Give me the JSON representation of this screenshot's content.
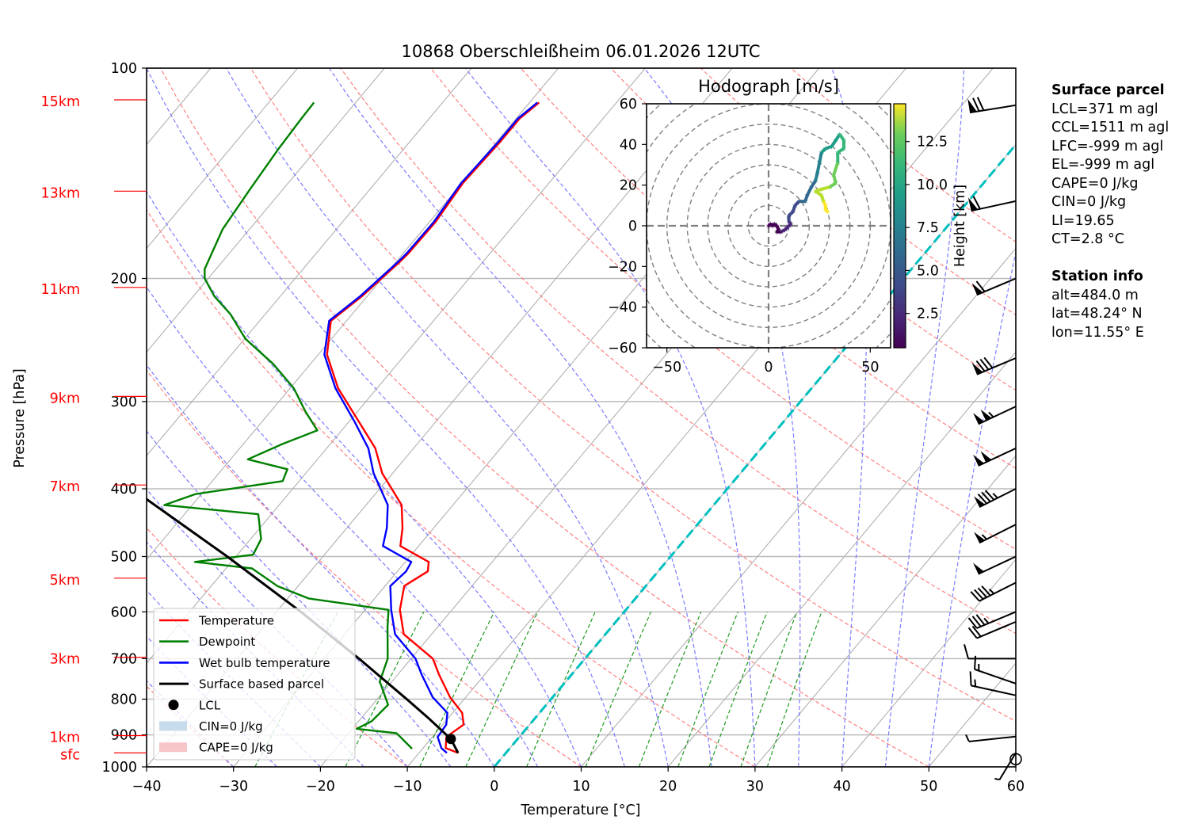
{
  "chart_data": {
    "type": "line",
    "subtype": "skew-T log-P diagram",
    "title": "10868 Oberschleißheim 06.01.2026 12UTC",
    "xlabel": "Temperature [°C]",
    "ylabel": "Pressure [hPa]",
    "xlim": [
      -40,
      60
    ],
    "ylim": [
      1000,
      100
    ],
    "y_scale": "log",
    "grid": true,
    "x_ticks": [
      -40,
      -30,
      -20,
      -10,
      0,
      10,
      20,
      30,
      40,
      50,
      60
    ],
    "x_tick_labels": [
      "−40",
      "−30",
      "−20",
      "−10",
      "0",
      "10",
      "20",
      "30",
      "40",
      "50",
      "60"
    ],
    "y_ticks": [
      100,
      200,
      300,
      400,
      500,
      600,
      700,
      800,
      900,
      1000
    ],
    "y_tick_labels": [
      "100",
      "200",
      "300",
      "400",
      "500",
      "600",
      "700",
      "800",
      "900",
      "1000"
    ],
    "height_markers": [
      {
        "label": "15km",
        "p": 111
      },
      {
        "label": "13km",
        "p": 150
      },
      {
        "label": "11km",
        "p": 206
      },
      {
        "label": "9km",
        "p": 295
      },
      {
        "label": "7km",
        "p": 395
      },
      {
        "label": "5km",
        "p": 537
      },
      {
        "label": "3km",
        "p": 697
      },
      {
        "label": "1km",
        "p": 902
      },
      {
        "label": "sfc",
        "p": 955
      }
    ],
    "series": [
      {
        "name": "Temperature",
        "color": "#ff0000",
        "points": [
          [
            955,
            -5.5
          ],
          [
            940,
            -7.4
          ],
          [
            906,
            -8.4
          ],
          [
            870,
            -7.6
          ],
          [
            837,
            -8.9
          ],
          [
            795,
            -11.8
          ],
          [
            737,
            -15.3
          ],
          [
            700,
            -17.5
          ],
          [
            646,
            -23.2
          ],
          [
            596,
            -26.0
          ],
          [
            551,
            -27.8
          ],
          [
            525,
            -26.5
          ],
          [
            509,
            -27.3
          ],
          [
            483,
            -32.1
          ],
          [
            455,
            -33.6
          ],
          [
            422,
            -35.9
          ],
          [
            380,
            -41.2
          ],
          [
            350,
            -44.4
          ],
          [
            321,
            -48.8
          ],
          [
            287,
            -54.5
          ],
          [
            257,
            -59.0
          ],
          [
            230,
            -61.8
          ],
          [
            212,
            -60.6
          ],
          [
            190,
            -59.6
          ],
          [
            184,
            -59.4
          ],
          [
            166,
            -59.3
          ],
          [
            146,
            -59.9
          ],
          [
            128,
            -59.6
          ],
          [
            118,
            -59.6
          ],
          [
            112,
            -58.9
          ]
        ]
      },
      {
        "name": "Dewpoint",
        "color": "#008000",
        "points": [
          [
            942,
            -11.2
          ],
          [
            906,
            -13.7
          ],
          [
            895,
            -14.5
          ],
          [
            882,
            -19.5
          ],
          [
            860,
            -18.5
          ],
          [
            815,
            -18.2
          ],
          [
            755,
            -21.4
          ],
          [
            700,
            -22.7
          ],
          [
            630,
            -25.8
          ],
          [
            596,
            -27.3
          ],
          [
            574,
            -37.6
          ],
          [
            551,
            -42.4
          ],
          [
            520,
            -47.0
          ],
          [
            509,
            -54.2
          ],
          [
            497,
            -48.2
          ],
          [
            472,
            -48.8
          ],
          [
            435,
            -51.5
          ],
          [
            422,
            -63.2
          ],
          [
            407,
            -60.7
          ],
          [
            390,
            -51.9
          ],
          [
            375,
            -52.5
          ],
          [
            363,
            -58.0
          ],
          [
            345,
            -55.5
          ],
          [
            330,
            -52.8
          ],
          [
            310,
            -56.0
          ],
          [
            287,
            -59.6
          ],
          [
            265,
            -64.3
          ],
          [
            244,
            -69.9
          ],
          [
            225,
            -74.0
          ],
          [
            212,
            -77.6
          ],
          [
            200,
            -80.4
          ],
          [
            194,
            -81.3
          ],
          [
            170,
            -83.1
          ],
          [
            149,
            -83.8
          ],
          [
            131,
            -84.4
          ],
          [
            118,
            -84.7
          ],
          [
            112,
            -84.8
          ]
        ]
      },
      {
        "name": "Wet bulb temperature",
        "color": "#0000ff",
        "points": [
          [
            955,
            -6.8
          ],
          [
            940,
            -7.9
          ],
          [
            906,
            -9.4
          ],
          [
            870,
            -9.6
          ],
          [
            837,
            -10.6
          ],
          [
            795,
            -13.8
          ],
          [
            737,
            -17.3
          ],
          [
            700,
            -19.5
          ],
          [
            646,
            -24.2
          ],
          [
            596,
            -27.0
          ],
          [
            551,
            -29.4
          ],
          [
            525,
            -29.0
          ],
          [
            509,
            -29.3
          ],
          [
            483,
            -34.1
          ],
          [
            455,
            -35.4
          ],
          [
            422,
            -37.5
          ],
          [
            380,
            -42.2
          ],
          [
            350,
            -45.2
          ],
          [
            321,
            -49.3
          ],
          [
            287,
            -54.8
          ],
          [
            257,
            -59.3
          ],
          [
            230,
            -62.0
          ],
          [
            212,
            -60.8
          ],
          [
            190,
            -59.8
          ],
          [
            184,
            -59.6
          ],
          [
            166,
            -59.5
          ],
          [
            146,
            -60.1
          ],
          [
            128,
            -59.8
          ],
          [
            118,
            -59.8
          ],
          [
            112,
            -59.1
          ]
        ]
      },
      {
        "name": "Surface based parcel",
        "color": "#000000",
        "points": [
          [
            955,
            -5.5
          ],
          [
            912,
            -7.7
          ],
          [
            850,
            -12.4
          ],
          [
            800,
            -16.6
          ],
          [
            700,
            -26.0
          ],
          [
            600,
            -37.2
          ],
          [
            500,
            -51.0
          ],
          [
            400,
            -68.5
          ],
          [
            340,
            -81.0
          ]
        ]
      }
    ],
    "lcl": {
      "label": "LCL",
      "p": 912,
      "t": -7.7
    },
    "isotherm_0c": {
      "color": "#00bfbf",
      "t": 0
    },
    "legend": {
      "placement": "lower-left",
      "entries": [
        {
          "label": "Temperature",
          "color": "#ff0000",
          "kind": "line"
        },
        {
          "label": "Dewpoint",
          "color": "#008000",
          "kind": "line"
        },
        {
          "label": "Wet bulb temperature",
          "color": "#0000ff",
          "kind": "line"
        },
        {
          "label": "Surface based parcel",
          "color": "#000000",
          "kind": "line"
        },
        {
          "label": "LCL",
          "color": "#000000",
          "kind": "dot"
        },
        {
          "label": "CIN=0 J/kg",
          "color": "#c6dbec",
          "kind": "patch"
        },
        {
          "label": "CAPE=0 J/kg",
          "color": "#f6c6c8",
          "kind": "patch"
        }
      ]
    },
    "wind_barbs": [
      {
        "p": 955,
        "speed_kt": 5,
        "dir": "calm-ish"
      },
      {
        "p": 905,
        "speed_kt": 5
      },
      {
        "p": 790,
        "speed_kt": 15
      },
      {
        "p": 760,
        "speed_kt": 15
      },
      {
        "p": 700,
        "speed_kt": 10
      },
      {
        "p": 620,
        "speed_kt": 20
      },
      {
        "p": 600,
        "speed_kt": 35
      },
      {
        "p": 545,
        "speed_kt": 45
      },
      {
        "p": 500,
        "speed_kt": 50
      },
      {
        "p": 450,
        "speed_kt": 55
      },
      {
        "p": 400,
        "speed_kt": 85
      },
      {
        "p": 350,
        "speed_kt": 100
      },
      {
        "p": 305,
        "speed_kt": 105
      },
      {
        "p": 260,
        "speed_kt": 80
      },
      {
        "p": 200,
        "speed_kt": 60
      },
      {
        "p": 155,
        "speed_kt": 60
      },
      {
        "p": 113,
        "speed_kt": 70
      }
    ],
    "hodograph": {
      "title": "Hodograph [m/s]",
      "xlim": [
        -60,
        60
      ],
      "ylim": [
        -60,
        60
      ],
      "x_ticks": [
        -50,
        0,
        50
      ],
      "x_tick_labels": [
        "−50",
        "0",
        "50"
      ],
      "y_ticks": [
        -60,
        -40,
        -20,
        0,
        20,
        40,
        60
      ],
      "y_tick_labels": [
        "−60",
        "−40",
        "−20",
        "0",
        "20",
        "40",
        "60"
      ],
      "ring_spacing": 10,
      "colorbar": {
        "label": "Height [km]",
        "range": [
          0.5,
          14.7
        ],
        "ticks": [
          2.5,
          5.0,
          7.5,
          10.0,
          12.5
        ],
        "tick_labels": [
          "2.5",
          "5.0",
          "7.5",
          "10.0",
          "12.5"
        ],
        "colormap": "viridis"
      },
      "points": [
        [
          0,
          0,
          0.5
        ],
        [
          1,
          1,
          0.7
        ],
        [
          2,
          0,
          0.9
        ],
        [
          3,
          1,
          1.1
        ],
        [
          4,
          0,
          1.3
        ],
        [
          5,
          -2,
          1.5
        ],
        [
          4,
          -3,
          1.7
        ],
        [
          6,
          -3,
          1.9
        ],
        [
          8,
          -2,
          2.1
        ],
        [
          9,
          -1,
          2.3
        ],
        [
          10,
          0,
          2.5
        ],
        [
          11,
          1,
          2.8
        ],
        [
          10,
          2,
          3.1
        ],
        [
          10,
          5,
          3.4
        ],
        [
          12,
          7,
          3.7
        ],
        [
          13,
          10,
          4.0
        ],
        [
          15,
          12,
          4.4
        ],
        [
          18,
          12,
          4.8
        ],
        [
          19,
          15,
          5.2
        ],
        [
          21,
          19,
          5.6
        ],
        [
          23,
          22,
          6.0
        ],
        [
          24,
          26,
          6.4
        ],
        [
          25,
          31,
          6.8
        ],
        [
          26,
          36,
          7.2
        ],
        [
          28,
          38,
          7.6
        ],
        [
          31,
          39,
          8.0
        ],
        [
          33,
          42,
          8.4
        ],
        [
          35,
          45,
          8.8
        ],
        [
          37,
          42,
          9.2
        ],
        [
          37,
          38,
          9.6
        ],
        [
          34,
          36,
          10.0
        ],
        [
          34,
          31,
          10.4
        ],
        [
          32,
          25,
          10.8
        ],
        [
          33,
          21,
          11.2
        ],
        [
          30,
          19,
          11.6
        ],
        [
          26,
          18,
          12.0
        ],
        [
          23,
          17,
          12.4
        ],
        [
          26,
          15,
          12.8
        ],
        [
          27,
          12,
          13.2
        ],
        [
          28,
          10,
          13.6
        ],
        [
          28,
          8,
          14.0
        ],
        [
          29,
          7,
          14.4
        ]
      ]
    }
  },
  "side_panel": {
    "surface_parcel_title": "Surface parcel",
    "surface_parcel_lines": [
      "LCL=371 m agl",
      "CCL=1511 m agl",
      "LFC=-999 m agl",
      "EL=-999 m agl",
      "CAPE=0 J/kg",
      "CIN=0 J/kg",
      "LI=19.65",
      "CT=2.8 °C"
    ],
    "station_title": "Station info",
    "station_lines": [
      "alt=484.0 m",
      "lat=48.24° N",
      "lon=11.55° E"
    ]
  }
}
